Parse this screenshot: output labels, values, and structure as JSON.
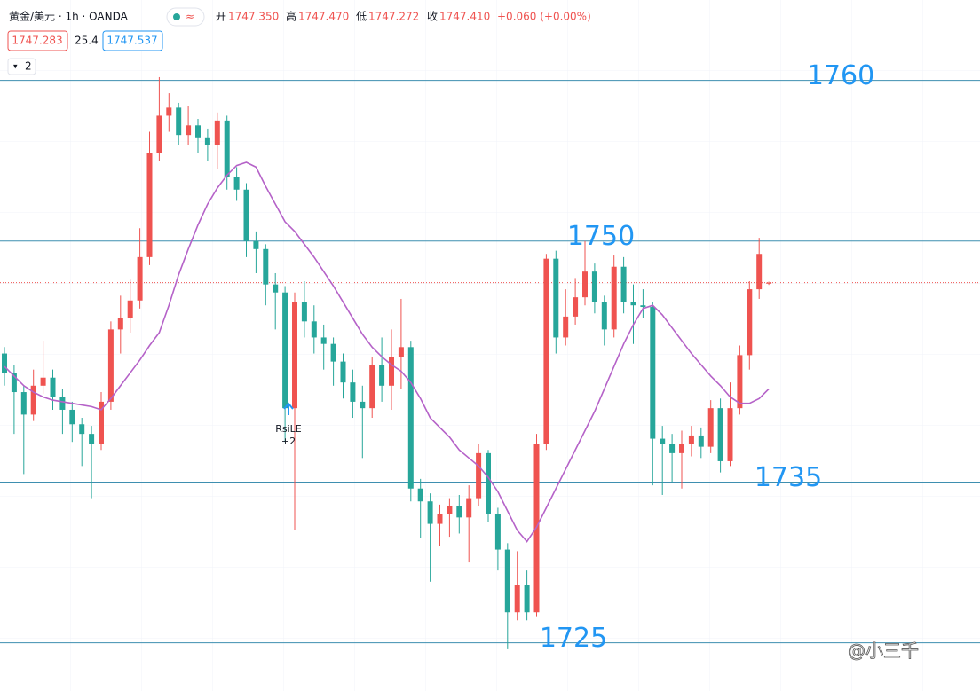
{
  "header": {
    "symbol": "黄金/美元 · 1h · OANDA",
    "open_label": "开",
    "open": "1747.350",
    "high_label": "高",
    "high": "1747.470",
    "low_label": "低",
    "low": "1747.272",
    "close_label": "收",
    "close": "1747.410",
    "change": "+0.060 (+0.00%)",
    "bid": "1747.283",
    "spread": "25.4",
    "ask": "1747.537",
    "layers": "2",
    "signal": "RsiLE",
    "signal_qty": "+2",
    "watermark": "@小三千"
  },
  "chart_data": {
    "type": "candlestick",
    "up_color": "#ef5350",
    "down_color": "#26a69a",
    "ylim": [
      1722,
      1765
    ],
    "open": [
      1743.0,
      1741.8,
      1740.6,
      1739.2,
      1741.0,
      1741.5,
      1740.3,
      1739.5,
      1738.6,
      1738.0,
      1737.4,
      1740.0,
      1744.5,
      1745.2,
      1746.3,
      1749.0,
      1755.5,
      1757.8,
      1758.3,
      1756.6,
      1757.2,
      1756.4,
      1756.0,
      1757.5,
      1754.0,
      1753.2,
      1750.0,
      1749.5,
      1747.3,
      1746.8,
      1739.6,
      1746.2,
      1745.0,
      1744.0,
      1743.6,
      1742.5,
      1741.2,
      1740.0,
      1739.6,
      1742.3,
      1741.0,
      1742.8,
      1743.4,
      1734.6,
      1733.8,
      1732.4,
      1733.0,
      1733.5,
      1732.8,
      1734.0,
      1736.8,
      1733.0,
      1730.8,
      1726.9,
      1728.6,
      1726.9,
      1737.4,
      1748.9,
      1744.0,
      1745.3,
      1746.5,
      1748.1,
      1746.2,
      1744.5,
      1748.4,
      1746.2,
      1746.0,
      1745.9,
      1737.7,
      1737.4,
      1736.8,
      1737.4,
      1737.9,
      1737.2,
      1739.6,
      1736.3,
      1739.6,
      1742.9,
      1747.0,
      1747.35
    ],
    "high": [
      1743.4,
      1742.3,
      1741.0,
      1742.0,
      1743.8,
      1742.0,
      1740.8,
      1740.0,
      1739.0,
      1738.5,
      1740.6,
      1745.0,
      1746.6,
      1747.6,
      1750.8,
      1756.8,
      1760.2,
      1759.2,
      1758.6,
      1758.4,
      1757.6,
      1757.0,
      1758.0,
      1757.8,
      1754.6,
      1753.6,
      1750.6,
      1749.8,
      1748.0,
      1747.2,
      1746.8,
      1747.5,
      1746.0,
      1744.8,
      1744.0,
      1743.0,
      1742.0,
      1741.0,
      1742.8,
      1744.0,
      1744.5,
      1746.4,
      1743.8,
      1735.2,
      1734.3,
      1733.6,
      1734.0,
      1734.2,
      1734.8,
      1737.4,
      1737.0,
      1733.4,
      1731.2,
      1730.7,
      1729.5,
      1738.0,
      1749.2,
      1749.4,
      1747.0,
      1747.7,
      1750.0,
      1748.6,
      1746.6,
      1749.1,
      1749.0,
      1747.3,
      1747.0,
      1746.2,
      1738.5,
      1738.0,
      1738.2,
      1738.5,
      1738.4,
      1740.1,
      1740.2,
      1741.2,
      1743.5,
      1747.5,
      1750.2,
      1747.47
    ],
    "low": [
      1741.0,
      1738.0,
      1735.5,
      1738.8,
      1740.5,
      1739.5,
      1738.0,
      1737.5,
      1736.0,
      1734.0,
      1737.0,
      1739.5,
      1743.0,
      1744.3,
      1745.8,
      1748.5,
      1755.0,
      1756.8,
      1756.0,
      1756.0,
      1755.5,
      1755.0,
      1754.5,
      1753.2,
      1752.5,
      1749.0,
      1748.0,
      1746.0,
      1744.5,
      1737.5,
      1732.0,
      1744.0,
      1743.0,
      1742.0,
      1741.0,
      1740.2,
      1739.0,
      1736.5,
      1739.0,
      1740.0,
      1739.5,
      1740.8,
      1733.8,
      1731.5,
      1728.8,
      1731.0,
      1731.6,
      1731.8,
      1730.0,
      1733.5,
      1732.5,
      1729.5,
      1724.6,
      1726.4,
      1726.4,
      1726.6,
      1737.0,
      1743.0,
      1743.5,
      1744.8,
      1746.0,
      1745.5,
      1743.5,
      1744.0,
      1745.5,
      1743.6,
      1745.2,
      1734.8,
      1734.2,
      1735.0,
      1734.6,
      1736.6,
      1736.5,
      1736.8,
      1735.6,
      1736.0,
      1739.2,
      1742.0,
      1746.4,
      1747.272
    ],
    "close": [
      1741.8,
      1740.6,
      1739.2,
      1741.0,
      1741.5,
      1740.3,
      1739.5,
      1738.6,
      1738.0,
      1737.4,
      1740.0,
      1744.5,
      1745.2,
      1746.3,
      1749.0,
      1755.5,
      1757.8,
      1758.3,
      1756.6,
      1757.2,
      1756.4,
      1756.0,
      1757.5,
      1754.0,
      1753.2,
      1750.0,
      1749.5,
      1747.3,
      1746.8,
      1739.6,
      1746.2,
      1745.0,
      1744.0,
      1743.6,
      1742.5,
      1741.2,
      1740.0,
      1739.6,
      1742.3,
      1741.0,
      1742.8,
      1743.4,
      1734.6,
      1733.8,
      1732.4,
      1733.0,
      1733.5,
      1732.8,
      1734.0,
      1736.8,
      1733.0,
      1730.8,
      1726.9,
      1728.6,
      1726.9,
      1737.4,
      1748.9,
      1744.0,
      1745.3,
      1746.5,
      1748.1,
      1746.2,
      1744.5,
      1748.4,
      1746.2,
      1746.0,
      1745.9,
      1737.7,
      1737.4,
      1736.8,
      1737.4,
      1737.9,
      1737.2,
      1739.6,
      1736.3,
      1739.6,
      1742.9,
      1747.0,
      1749.2,
      1747.41
    ],
    "ma": {
      "color": "#b562c8",
      "values": [
        1742.2,
        1741.6,
        1741.0,
        1740.6,
        1740.3,
        1740.1,
        1740.0,
        1739.9,
        1739.8,
        1739.7,
        1739.5,
        1740.2,
        1741.0,
        1741.8,
        1742.6,
        1743.5,
        1744.3,
        1746.0,
        1747.9,
        1749.5,
        1751.0,
        1752.3,
        1753.3,
        1754.1,
        1754.7,
        1754.9,
        1754.6,
        1753.4,
        1752.3,
        1751.2,
        1750.6,
        1749.8,
        1749.0,
        1748.1,
        1747.2,
        1746.2,
        1745.2,
        1744.2,
        1743.4,
        1742.8,
        1742.3,
        1741.9,
        1741.2,
        1740.2,
        1739.0,
        1738.4,
        1737.8,
        1737.0,
        1736.5,
        1736.0,
        1735.3,
        1734.4,
        1733.2,
        1732.0,
        1731.3,
        1732.2,
        1733.4,
        1734.6,
        1735.8,
        1737.0,
        1738.2,
        1739.4,
        1740.8,
        1742.2,
        1743.6,
        1744.8,
        1745.8,
        1746.0,
        1745.4,
        1744.6,
        1743.8,
        1743.0,
        1742.3,
        1741.6,
        1741.0,
        1740.3,
        1739.9,
        1739.9,
        1740.2,
        1740.8
      ]
    },
    "hlines": [
      1760,
      1750,
      1735,
      1725
    ],
    "hline_color": "#3e8fb0"
  }
}
